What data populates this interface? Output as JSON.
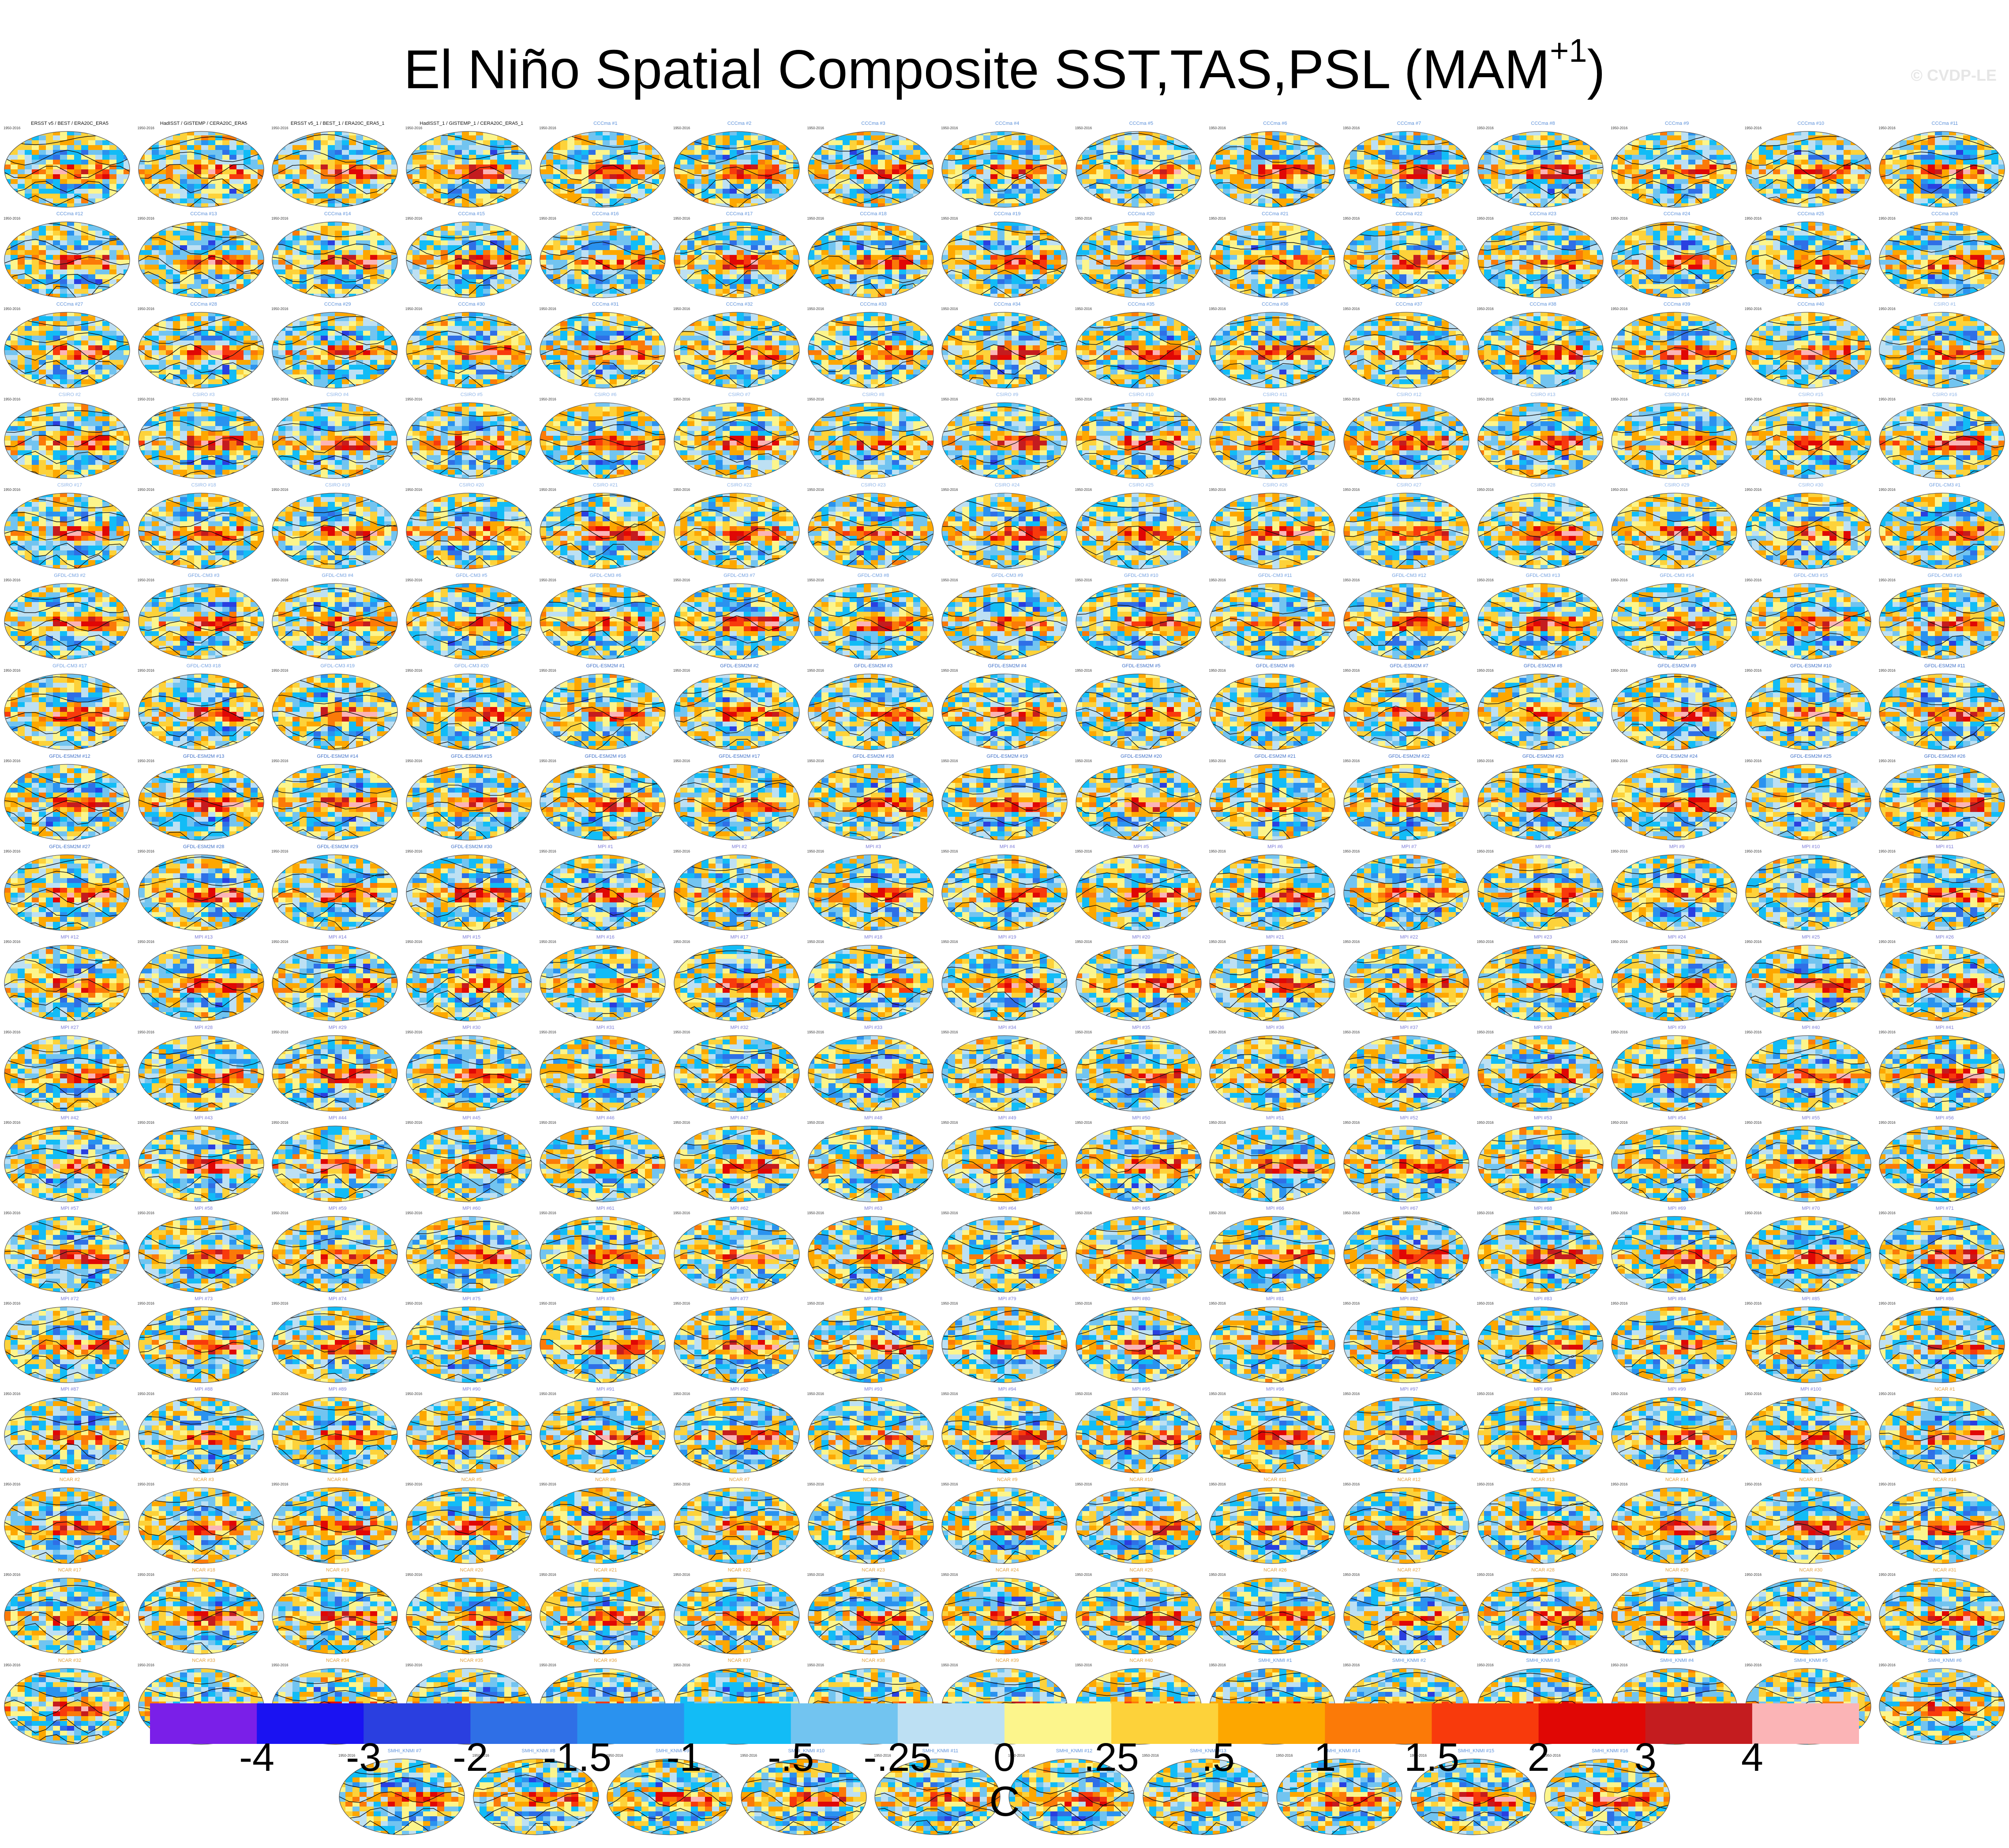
{
  "title": "El Niño Spatial Composite SST,TAS,PSL (MAM",
  "title_superscript": "+1",
  "title_close": ")",
  "watermark": "© CVDP-LE",
  "panels": {
    "observed_labels": [
      "ERSST v5 / BEST / ERA20C_ERA5",
      "HadISST / GISTEMP / CERA20C_ERA5",
      "ERSST v5_1 / BEST_1 / ERA20C_ERA5_1",
      "HadISST_1 / GISTEMP_1 / CERA20C_ERA5_1"
    ],
    "model_groups": [
      {
        "name": "CCCma",
        "count": 40,
        "color": "#5a8fd9"
      },
      {
        "name": "CSIRO",
        "count": 30,
        "color": "#8fb5e8"
      },
      {
        "name": "GFDL-CM3",
        "count": 20,
        "color": "#6f9ee0"
      },
      {
        "name": "GFDL-ESM2M",
        "count": 30,
        "color": "#3d6fc8"
      },
      {
        "name": "MPI",
        "count": 100,
        "color": "#7a7ad8"
      },
      {
        "name": "NCAR",
        "count": 40,
        "color": "#e0a040"
      },
      {
        "name": "SMHI_KNMI",
        "count": 16,
        "color": "#5a8fd9"
      }
    ],
    "years_text": "1950-2016",
    "columns": 15,
    "last_row_count": 10
  },
  "chart_data": {
    "type": "heatmap",
    "title": "El Niño Spatial Composite SST,TAS,PSL (MAM+1)",
    "description_of_marks": "grid of global map panels; colour fill = SST/TAS anomaly, black contours = PSL anomaly",
    "colorbar": {
      "units": "C",
      "tick_labels": [
        "-4",
        "-3",
        "-2",
        "-1.5",
        "-1",
        "-.5",
        "-.25",
        "0",
        ".25",
        ".5",
        "1",
        "1.5",
        "2",
        "3",
        "4"
      ],
      "levels": [
        -4,
        -3,
        -2,
        -1.5,
        -1,
        -0.5,
        -0.25,
        0,
        0.25,
        0.5,
        1,
        1.5,
        2,
        3,
        4
      ],
      "colors": [
        "#7a1fe8",
        "#1a12f2",
        "#2a3fe0",
        "#2f6fe6",
        "#2a92ef",
        "#12bcf6",
        "#72c4f0",
        "#bde0f3",
        "#fcf58c",
        "#fdd23a",
        "#fda700",
        "#fb7a08",
        "#f83a0c",
        "#e00705",
        "#c41c1f",
        "#fbb4b6"
      ]
    }
  }
}
